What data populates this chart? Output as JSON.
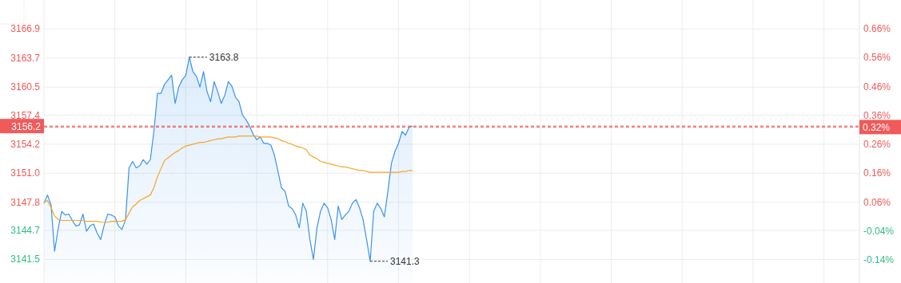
{
  "chart_data": {
    "type": "area",
    "categories": [
      null,
      null,
      null,
      null,
      null,
      null,
      null,
      null,
      null,
      null,
      null,
      null,
      null,
      null,
      null,
      null,
      null,
      null,
      null,
      null,
      null,
      null,
      null,
      null,
      null,
      null,
      null,
      null,
      null,
      null,
      null,
      null,
      null,
      null,
      null,
      null,
      null,
      null,
      null,
      null,
      null,
      null,
      null,
      null,
      null,
      null,
      null,
      null,
      null,
      null,
      null,
      null,
      null,
      null,
      null,
      null,
      null,
      null,
      null,
      null,
      null,
      null,
      null,
      null,
      null,
      null,
      null,
      null,
      null,
      null,
      null,
      null,
      null,
      null,
      null,
      null,
      null,
      null,
      null,
      null,
      null,
      null,
      null,
      null,
      null,
      null,
      null,
      null,
      null,
      null,
      null,
      null,
      null,
      null,
      null,
      null,
      null,
      null,
      null,
      null,
      null,
      null,
      null,
      null,
      null,
      null,
      null,
      null,
      null,
      null,
      null,
      null,
      null,
      null,
      null,
      null,
      null,
      null,
      null,
      null,
      null,
      null,
      null,
      null,
      null,
      null,
      null,
      null,
      null,
      null,
      null,
      null,
      null,
      null,
      null,
      null,
      null,
      null,
      null,
      null,
      null,
      null,
      null,
      null,
      null,
      null,
      null,
      null,
      null,
      null,
      null,
      null,
      null,
      null,
      null,
      null,
      null,
      null,
      null,
      null,
      null,
      null,
      null,
      null,
      null,
      null,
      null,
      null,
      null,
      null,
      null,
      null,
      null,
      null,
      null,
      null,
      null,
      null,
      null,
      null,
      null,
      null,
      null,
      null,
      null,
      null,
      null,
      null,
      null,
      null,
      null,
      null,
      null,
      null,
      null,
      null,
      null,
      null,
      null,
      null,
      null,
      null,
      null,
      null,
      null,
      null,
      null,
      null,
      null,
      null,
      null,
      null,
      null,
      null,
      null,
      null,
      null,
      null,
      null,
      null,
      null,
      null,
      null,
      null,
      null,
      null,
      null,
      null,
      null,
      null,
      null
    ],
    "series": [
      {
        "color": "#3a93ec",
        "values": [
          3147.7,
          3148.6,
          3147.5,
          3142.4,
          3144.9,
          3146.8,
          3146.4,
          3146.5,
          3145.8,
          3145.2,
          3145.3,
          3146.5,
          3144.6,
          3145.2,
          3145.4,
          3144.4,
          3143.7,
          3145.3,
          3146.5,
          3146.4,
          3146.2,
          3145.2,
          3144.8,
          3145.9,
          3151.6,
          3152.3,
          3151.6,
          3151.8,
          3152.5,
          3152.0,
          3152.5,
          3155.6,
          3159.8,
          3159.8,
          3160.8,
          3161.3,
          3161.8,
          3158.7,
          3160.5,
          3161.3,
          3161.8,
          3163.8,
          3162.2,
          3161.7,
          3160.5,
          3162.2,
          3160.0,
          3158.9,
          3161.1,
          3160.0,
          3158.7,
          3159.6,
          3161.1,
          3160.6,
          3159.4,
          3158.9,
          3157.4,
          3156.9,
          3156.2,
          3155.3,
          3154.7,
          3155.0,
          3154.3,
          3154.3,
          3154.1,
          3153.0,
          3151.2,
          3149.4,
          3149.0,
          3147.4,
          3147.1,
          3146.4,
          3145.0,
          3147.7,
          3146.8,
          3143.7,
          3141.5,
          3145.0,
          3146.8,
          3147.7,
          3147.2,
          3145.9,
          3143.7,
          3147.4,
          3145.9,
          3146.4,
          3146.8,
          3147.7,
          3148.1,
          3147.2,
          3145.9,
          3143.7,
          3141.3,
          3146.8,
          3147.7,
          3147.1,
          3146.2,
          3149.0,
          3152.1,
          3153.4,
          3154.3,
          3155.6,
          3155.2,
          3156.1,
          3156.2,
          null,
          null,
          null,
          null,
          null,
          null,
          null,
          null,
          null,
          null,
          null,
          null,
          null,
          null,
          null,
          null,
          null,
          null,
          null,
          null,
          null,
          null,
          null,
          null,
          null,
          null,
          null,
          null,
          null,
          null,
          null,
          null,
          null,
          null,
          null,
          null,
          null,
          null,
          null,
          null,
          null,
          null,
          null,
          null,
          null,
          null,
          null,
          null,
          null,
          null,
          null,
          null,
          null,
          null,
          null,
          null,
          null,
          null,
          null,
          null,
          null,
          null,
          null,
          null,
          null,
          null,
          null,
          null,
          null,
          null,
          null,
          null,
          null,
          null,
          null,
          null,
          null,
          null,
          null,
          null,
          null,
          null,
          null,
          null,
          null,
          null,
          null,
          null,
          null,
          null,
          null,
          null,
          null,
          null,
          null,
          null,
          null,
          null,
          null,
          null,
          null,
          null,
          null,
          null,
          null,
          null,
          null,
          null,
          null,
          null,
          null,
          null,
          null,
          null,
          null,
          null,
          null,
          null,
          null,
          null,
          null,
          null,
          null,
          null,
          null,
          null
        ]
      },
      {
        "type": "line",
        "color": "#f5a623",
        "values": [
          3147.8,
          3148.0,
          3147.2,
          3146.3,
          3145.9,
          3145.8,
          3145.8,
          3145.8,
          3145.8,
          3145.8,
          3145.8,
          3145.8,
          3145.7,
          3145.7,
          3145.7,
          3145.7,
          3145.6,
          3145.6,
          3145.6,
          3145.7,
          3145.7,
          3145.7,
          3145.7,
          3145.9,
          3146.6,
          3147.3,
          3147.6,
          3148.0,
          3148.2,
          3148.4,
          3148.6,
          3149.4,
          3150.6,
          3151.5,
          3152.4,
          3152.7,
          3153.0,
          3153.3,
          3153.5,
          3153.8,
          3154.0,
          3154.1,
          3154.2,
          3154.3,
          3154.4,
          3154.4,
          3154.5,
          3154.6,
          3154.7,
          3154.8,
          3154.8,
          3154.9,
          3155.0,
          3155.0,
          3155.0,
          3155.1,
          3155.1,
          3155.1,
          3155.1,
          3155.1,
          3155.1,
          3155.0,
          3155.0,
          3155.0,
          3155.0,
          3154.9,
          3154.8,
          3154.6,
          3154.5,
          3154.3,
          3154.2,
          3154.0,
          3153.9,
          3153.8,
          3153.6,
          3153.0,
          3152.8,
          3152.6,
          3152.3,
          3152.2,
          3152.1,
          3152.0,
          3151.9,
          3151.8,
          3151.7,
          3151.7,
          3151.6,
          3151.5,
          3151.4,
          3151.3,
          3151.3,
          3151.2,
          3151.1,
          3151.1,
          3151.1,
          3151.1,
          3151.1,
          3151.1,
          3151.1,
          3151.1,
          3151.1,
          3151.2,
          3151.2,
          3151.3,
          3151.3,
          null,
          null,
          null,
          null,
          null,
          null,
          null,
          null,
          null,
          null,
          null,
          null,
          null,
          null,
          null,
          null,
          null,
          null,
          null,
          null,
          null,
          null,
          null,
          null,
          null,
          null,
          null,
          null,
          null,
          null,
          null,
          null,
          null,
          null,
          null,
          null,
          null,
          null,
          null,
          null,
          null,
          null,
          null,
          null,
          null,
          null,
          null,
          null,
          null,
          null,
          null,
          null,
          null,
          null,
          null,
          null,
          null,
          null,
          null,
          null,
          null,
          null,
          null,
          null,
          null,
          null,
          null,
          null,
          null,
          null,
          null,
          null,
          null,
          null,
          null,
          null,
          null,
          null,
          null,
          null,
          null,
          null,
          null,
          null,
          null,
          null,
          null,
          null,
          null,
          null,
          null,
          null,
          null,
          null,
          null,
          null,
          null,
          null,
          null,
          null,
          null,
          null,
          null,
          null,
          null,
          null,
          null,
          null,
          null,
          null,
          null,
          null,
          null,
          null,
          null,
          null,
          null,
          null,
          null,
          null,
          null,
          null,
          null,
          null,
          null,
          null
        ]
      }
    ],
    "ylim": [
      3138.9,
      3170.1
    ],
    "yticks": [
      3141.5,
      3144.7,
      3147.8,
      {
        "value": 3151,
        "label": "3151.0"
      },
      3154.2,
      3157.4,
      3160.5,
      3163.7,
      3166.9
    ],
    "y2lim": [
      -0.22,
      0.76
    ],
    "y2ticks": [
      {
        "value": -0.14,
        "label": "-0.14%"
      },
      {
        "value": -0.04,
        "label": "-0.04%"
      },
      {
        "value": 0.06,
        "label": "0.06%"
      },
      {
        "value": 0.16,
        "label": "0.16%"
      },
      {
        "value": 0.26,
        "label": "0.26%"
      },
      {
        "value": 0.36,
        "label": "0.36%"
      },
      {
        "value": 0.46,
        "label": "0.46%"
      },
      {
        "value": 0.56,
        "label": "0.56%"
      },
      {
        "value": 0.66,
        "label": "0.66%"
      }
    ],
    "ref_lines": [
      {
        "axis": "y",
        "value": 3156.2,
        "label": "3156.2",
        "color": "#f05a5a",
        "line_style": "dashed"
      },
      {
        "axis": "y2",
        "value": 0.32,
        "label": "0.32%",
        "color": "#f05a5a",
        "line_style": "dashed"
      }
    ],
    "annotations": [
      "3163.8",
      "3141.3"
    ],
    "grid": true
  }
}
